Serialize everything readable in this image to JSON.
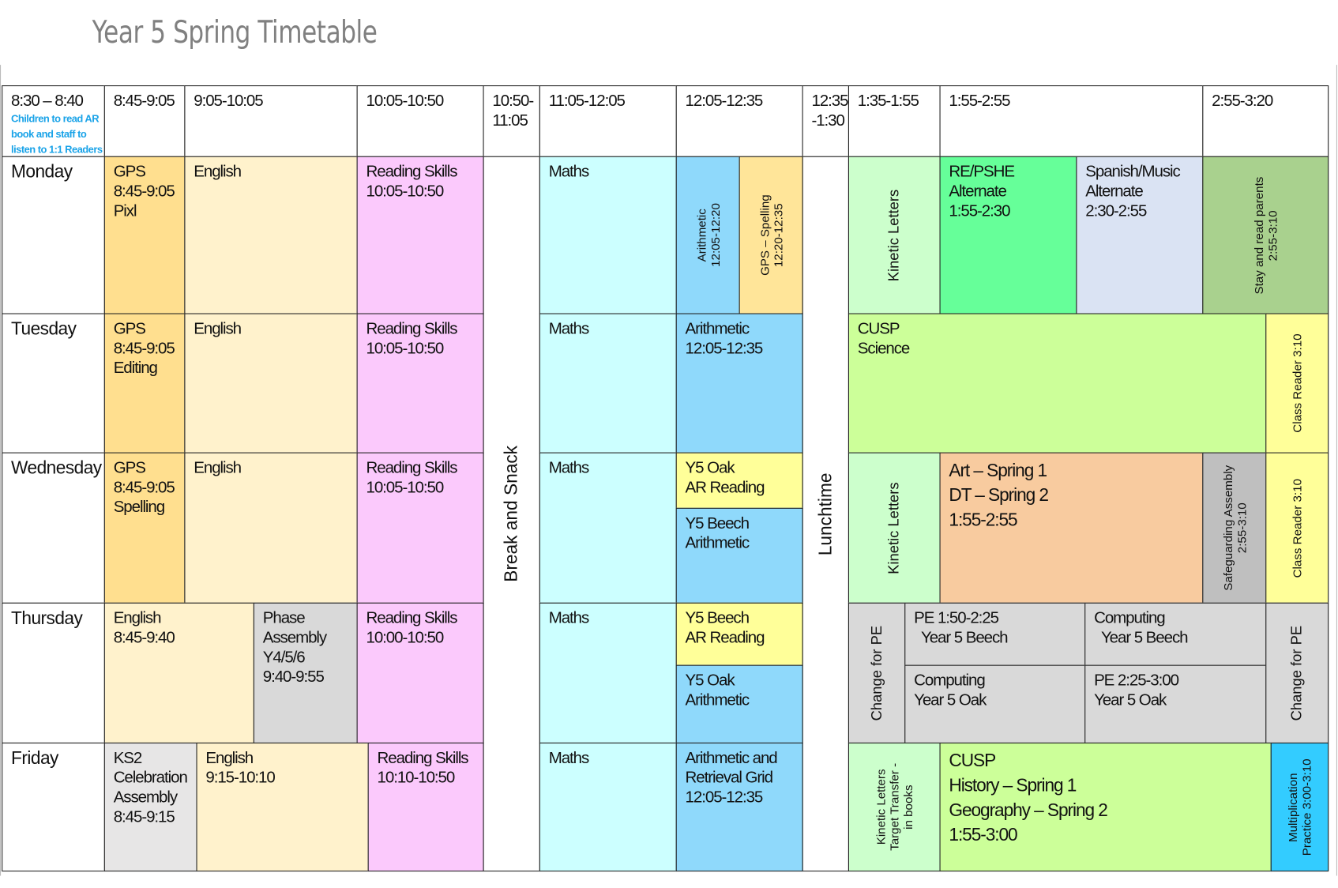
{
  "title": "Year 5 Spring Timetable",
  "header": {
    "h0": {
      "lines": [
        "8:30 – 8:40"
      ],
      "note": [
        "Children to read AR",
        "book and staff to",
        "listen to 1:1 Readers"
      ],
      "color": "#ffffff"
    },
    "h1": {
      "lines": [
        "8:45-9:05"
      ],
      "color": "#ffffff"
    },
    "h2": {
      "lines": [
        "9:05-10:05"
      ],
      "color": "#ffffff"
    },
    "h3": {
      "lines": [
        "10:05-10:50"
      ],
      "color": "#ffffff"
    },
    "h4": {
      "lines": [
        "10:50-",
        "11:05"
      ],
      "color": "#ffffff"
    },
    "h5": {
      "lines": [
        "11:05-12:05"
      ],
      "color": "#ffffff"
    },
    "h6": {
      "lines": [
        "12:05-12:35"
      ],
      "color": "#ffffff"
    },
    "h7": {
      "lines": [
        "12:35",
        "-1:30"
      ],
      "color": "#ffffff"
    },
    "h8": {
      "lines": [
        "1:35-1:55"
      ],
      "color": "#ffffff"
    },
    "h9": {
      "lines": [
        "1:55-2:55"
      ],
      "color": "#ffffff"
    },
    "h10": {
      "lines": [
        "2:55-3:20"
      ],
      "color": "#ffffff"
    }
  },
  "cells": {
    "break": {
      "lines": [
        "Break and Snack"
      ],
      "color": "#ffffff"
    },
    "lunch": {
      "lines": [
        "Lunchtime"
      ],
      "color": "#ffffff"
    },
    "mon_day": {
      "lines": [
        "Monday"
      ],
      "color": "#ffffff"
    },
    "mon_gps": {
      "lines": [
        "GPS",
        "8:45-9:05",
        "Pixl"
      ],
      "color": "#ffdf8f"
    },
    "mon_eng": {
      "lines": [
        "English"
      ],
      "color": "#fff2cc"
    },
    "mon_read": {
      "lines": [
        "Reading Skills",
        "10:05-10:50"
      ],
      "color": "#fbc9fc"
    },
    "mon_maths": {
      "lines": [
        "Maths"
      ],
      "color": "#ccffff"
    },
    "mon_arith": {
      "lines": [
        "Arithmetic",
        "12:05-12:20"
      ],
      "color": "#8fd9fb"
    },
    "mon_spell": {
      "lines": [
        "GPS – Spelling",
        "12:20-12:35"
      ],
      "color": "#ffe599"
    },
    "mon_kinetic": {
      "lines": [
        "Kinetic Letters"
      ],
      "color": "#ccffcc"
    },
    "mon_re": {
      "lines": [
        "RE/PSHE",
        "Alternate",
        "1:55-2:30"
      ],
      "color": "#66ff99"
    },
    "mon_spanish": {
      "lines": [
        "Spanish/Music",
        "Alternate",
        "2:30-2:55"
      ],
      "color": "#dae3f3"
    },
    "mon_stay": {
      "lines": [
        "Stay and read parents",
        "2:55-3:10"
      ],
      "color": "#a9d18e"
    },
    "tue_day": {
      "lines": [
        "Tuesday"
      ],
      "color": "#ffffff"
    },
    "tue_gps": {
      "lines": [
        "GPS",
        "8:45-9:05",
        "Editing"
      ],
      "color": "#ffdf8f"
    },
    "tue_eng": {
      "lines": [
        "English"
      ],
      "color": "#fff2cc"
    },
    "tue_read": {
      "lines": [
        "Reading Skills",
        "10:05-10:50"
      ],
      "color": "#fbc9fc"
    },
    "tue_maths": {
      "lines": [
        "Maths"
      ],
      "color": "#ccffff"
    },
    "tue_arith": {
      "lines": [
        "Arithmetic",
        "12:05-12:35"
      ],
      "color": "#8fd9fb"
    },
    "tue_cusp": {
      "lines": [
        "CUSP",
        "Science"
      ],
      "color": "#ccff99"
    },
    "tue_reader": {
      "lines": [
        "Class Reader 3:10"
      ],
      "color": "#ffff99"
    },
    "wed_day": {
      "lines": [
        "Wednesday"
      ],
      "color": "#ffffff"
    },
    "wed_gps": {
      "lines": [
        "GPS",
        "8:45-9:05",
        "Spelling"
      ],
      "color": "#ffdf8f"
    },
    "wed_eng": {
      "lines": [
        "English"
      ],
      "color": "#fff2cc"
    },
    "wed_read": {
      "lines": [
        "Reading Skills",
        "10:05-10:50"
      ],
      "color": "#fbc9fc"
    },
    "wed_maths": {
      "lines": [
        "Maths"
      ],
      "color": "#ccffff"
    },
    "wed_oak": {
      "lines": [
        "Y5 Oak",
        "AR Reading"
      ],
      "color": "#ffff99"
    },
    "wed_beech": {
      "lines": [
        "Y5 Beech",
        "Arithmetic"
      ],
      "color": "#8fd9fb"
    },
    "wed_kinetic": {
      "lines": [
        "Kinetic Letters"
      ],
      "color": "#ccffcc"
    },
    "wed_art": {
      "lines": [
        "Art – Spring 1",
        "DT – Spring 2",
        "1:55-2:55"
      ],
      "color": "#f8cb9f"
    },
    "wed_safe": {
      "lines": [
        "Safeguarding Assembly",
        "2:55-3:10"
      ],
      "color": "#bfbfbf"
    },
    "wed_reader": {
      "lines": [
        "Class Reader 3:10"
      ],
      "color": "#ffff99"
    },
    "thu_day": {
      "lines": [
        "Thursday"
      ],
      "color": "#ffffff"
    },
    "thu_eng": {
      "lines": [
        "English",
        "8:45-9:40"
      ],
      "color": "#fff2cc"
    },
    "thu_phase": {
      "lines": [
        "Phase",
        "Assembly",
        "Y4/5/6",
        "9:40-9:55"
      ],
      "color": "#d9d9d9"
    },
    "thu_read": {
      "lines": [
        "Reading Skills",
        "10:00-10:50"
      ],
      "color": "#fbc9fc"
    },
    "thu_maths": {
      "lines": [
        "Maths"
      ],
      "color": "#ccffff"
    },
    "thu_beech": {
      "lines": [
        "Y5 Beech",
        "AR Reading"
      ],
      "color": "#ffff99"
    },
    "thu_oak": {
      "lines": [
        "Y5 Oak",
        "Arithmetic"
      ],
      "color": "#8fd9fb"
    },
    "thu_change1": {
      "lines": [
        "Change for PE"
      ],
      "color": "#d9d9d9"
    },
    "thu_pe_beech": {
      "lines": [
        "PE 1:50-2:25",
        "  Year 5 Beech"
      ],
      "color": "#d9d9d9"
    },
    "thu_comp_beech": {
      "lines": [
        "Computing",
        "  Year 5 Beech"
      ],
      "color": "#d9d9d9"
    },
    "thu_comp_oak": {
      "lines": [
        "Computing",
        "Year 5 Oak"
      ],
      "color": "#d9d9d9"
    },
    "thu_pe_oak": {
      "lines": [
        "PE 2:25-3:00",
        "Year 5 Oak"
      ],
      "color": "#d9d9d9"
    },
    "thu_change2": {
      "lines": [
        "Change for PE"
      ],
      "color": "#d9d9d9"
    },
    "fri_day": {
      "lines": [
        "Friday"
      ],
      "color": "#ffffff"
    },
    "fri_ks2": {
      "lines": [
        "KS2",
        "Celebration",
        "Assembly",
        "8:45-9:15"
      ],
      "color": "#e7e6e6"
    },
    "fri_eng": {
      "lines": [
        "English",
        "9:15-10:10"
      ],
      "color": "#fff2cc"
    },
    "fri_read": {
      "lines": [
        "Reading Skills",
        "10:10-10:50"
      ],
      "color": "#fbc9fc"
    },
    "fri_maths": {
      "lines": [
        "Maths"
      ],
      "color": "#ccffff"
    },
    "fri_arith": {
      "lines": [
        "Arithmetic and",
        "Retrieval Grid",
        "12:05-12:35"
      ],
      "color": "#8fd9fb"
    },
    "fri_kinetic": {
      "lines": [
        "Kinetic Letters",
        "Target Transfer -",
        "in books"
      ],
      "color": "#ccffcc"
    },
    "fri_cusp": {
      "lines": [
        "CUSP",
        "History – Spring 1",
        "Geography – Spring 2",
        "1:55-3:00"
      ],
      "color": "#ccff99"
    },
    "fri_mult": {
      "lines": [
        "Multiplication",
        "Practice 3:00-3:10"
      ],
      "color": "#33ccff"
    }
  }
}
